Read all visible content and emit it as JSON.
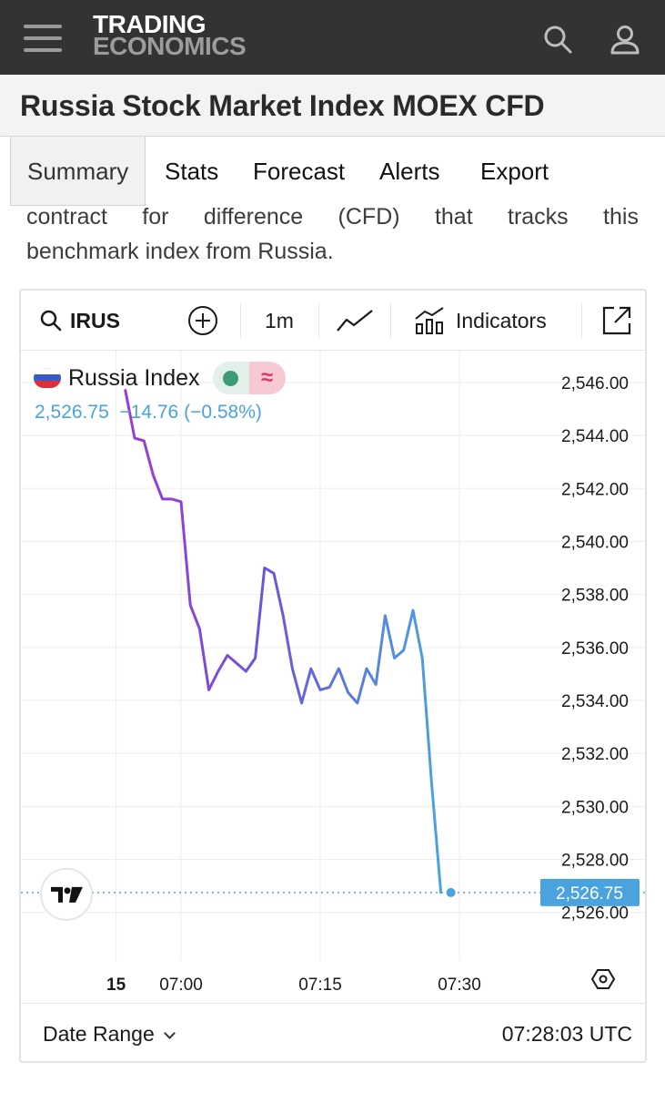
{
  "header": {
    "logo_line1": "TRADING",
    "logo_line2": "ECONOMICS",
    "icons": [
      "menu-icon",
      "search-icon",
      "user-icon"
    ]
  },
  "page": {
    "title": "Russia Stock Market Index MOEX CFD"
  },
  "tabs": [
    {
      "label": "Summary",
      "active": true
    },
    {
      "label": "Stats",
      "active": false
    },
    {
      "label": "Forecast",
      "active": false
    },
    {
      "label": "Alerts",
      "active": false
    },
    {
      "label": "Export",
      "active": false
    }
  ],
  "intro": {
    "line1_words": [
      "contract",
      "for",
      "difference",
      "(CFD)",
      "that",
      "tracks",
      "this"
    ],
    "line2": "benchmark index from Russia."
  },
  "toolbar": {
    "symbol": "IRUS",
    "interval": "1m",
    "indicators_label": "Indicators",
    "icons": [
      "search-icon",
      "add-compare-icon",
      "line-chart-type-icon",
      "indicators-icon",
      "expand-external-icon"
    ]
  },
  "legend": {
    "name": "Russia Index",
    "value": "2,526.75",
    "change": "−14.76",
    "change_pct": "(−0.58%)",
    "value_color": "#4aa3df"
  },
  "chart_data": {
    "type": "line",
    "series": [
      {
        "name": "Russia Index",
        "x": [
          "06:54",
          "06:55",
          "06:56",
          "06:57",
          "06:58",
          "06:59",
          "07:00",
          "07:01",
          "07:02",
          "07:03",
          "07:04",
          "07:05",
          "07:06",
          "07:07",
          "07:08",
          "07:09",
          "07:10",
          "07:11",
          "07:12",
          "07:13",
          "07:14",
          "07:15",
          "07:16",
          "07:17",
          "07:18",
          "07:19",
          "07:20",
          "07:21",
          "07:22",
          "07:23",
          "07:24",
          "07:25",
          "07:26",
          "07:27",
          "07:28"
        ],
        "values": [
          2545.7,
          2543.9,
          2543.8,
          2542.5,
          2541.6,
          2541.6,
          2541.5,
          2537.6,
          2536.7,
          2534.4,
          2535.1,
          2535.7,
          2535.4,
          2535.1,
          2535.6,
          2539.0,
          2538.8,
          2537.2,
          2535.2,
          2533.9,
          2535.2,
          2534.4,
          2534.5,
          2535.2,
          2534.3,
          2533.9,
          2535.2,
          2534.6,
          2537.2,
          2535.6,
          2535.9,
          2537.4,
          2535.6,
          2530.9,
          2526.75
        ]
      }
    ],
    "y_ticks": [
      "2,546.00",
      "2,544.00",
      "2,542.00",
      "2,540.00",
      "2,538.00",
      "2,536.00",
      "2,534.00",
      "2,532.00",
      "2,530.00",
      "2,528.00",
      "2,526.00"
    ],
    "x_ticks": [
      "15",
      "07:00",
      "07:15",
      "07:30"
    ],
    "last_value_label": "2,526.75",
    "ylim": [
      2525.2,
      2547.2
    ],
    "grid": true,
    "line_colors": [
      "#9b3bd6",
      "#6a56d8",
      "#4aa3df"
    ],
    "last_label_color": "#4aa3df",
    "watermark": "TV"
  },
  "footer": {
    "date_range_label": "Date Range",
    "time": "07:28:03 UTC"
  }
}
